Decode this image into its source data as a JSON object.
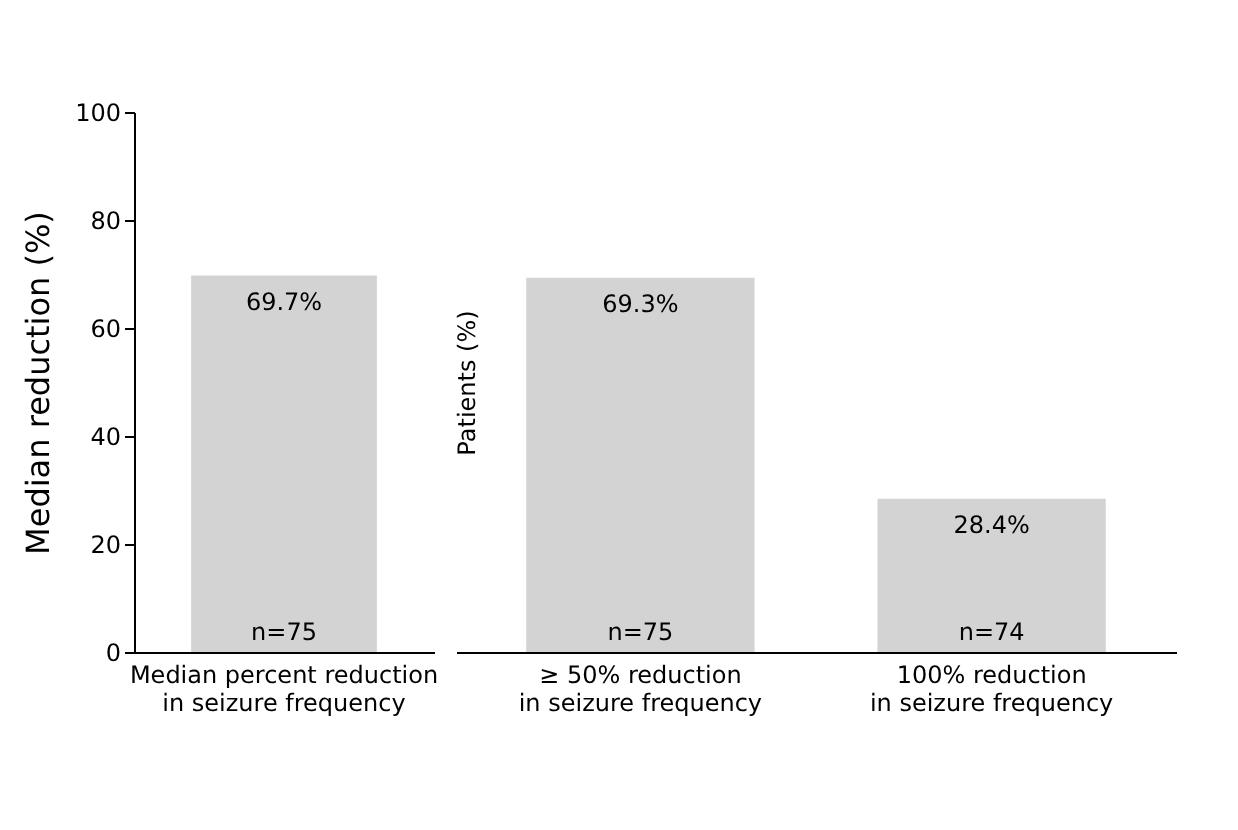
{
  "chart_data": [
    {
      "type": "bar",
      "ylabel": "Median reduction (%)",
      "categories": [
        "Median percent reduction\nin seizure frequency"
      ],
      "values": [
        69.7
      ],
      "color": "#d3d3d3",
      "value_labels": [
        "69.7%"
      ],
      "ylim": [
        0,
        100
      ],
      "yticks": [
        0,
        20,
        40,
        60,
        80,
        100
      ],
      "grid": false,
      "annotations": [
        {
          "text": "n=75",
          "x": "Median percent reduction\nin seizure frequency",
          "y": 0
        }
      ]
    },
    {
      "type": "bar",
      "ylabel": "Patients (%)",
      "categories": [
        "≥ 50% reduction\nin seizure frequency",
        "100% reduction\nin seizure frequency"
      ],
      "values": [
        69.3,
        28.4
      ],
      "color": "#d3d3d3",
      "value_labels": [
        "69.3%",
        "28.4%"
      ],
      "ylim": [
        0,
        100
      ],
      "yticks": [
        0,
        20,
        40,
        60,
        80,
        100
      ],
      "grid": false,
      "tick_labels": "x",
      "annotations": [
        {
          "text": "n=75",
          "x": "≥ 50% reduction\nin seizure frequency",
          "y": 0
        },
        {
          "text": "n=74",
          "x": "100% reduction\nin seizure frequency",
          "y": 0
        }
      ]
    }
  ]
}
